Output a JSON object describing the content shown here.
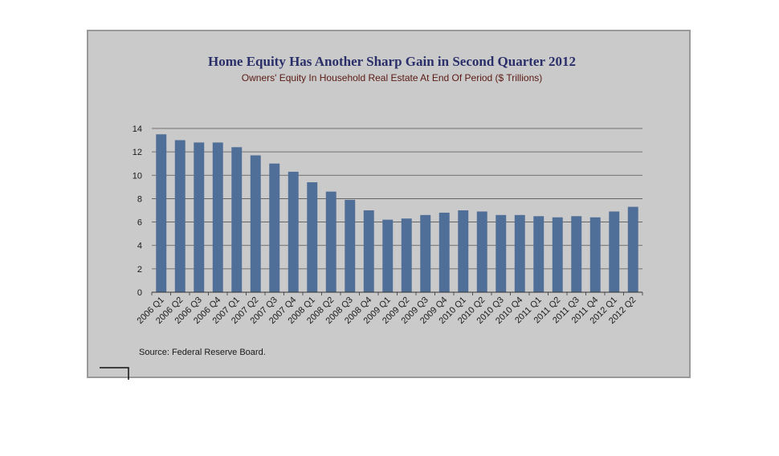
{
  "chart_data": {
    "type": "bar",
    "title": "Home Equity Has Another Sharp Gain in Second Quarter 2012",
    "subtitle": "Owners' Equity In Household Real Estate At End Of Period ($ Trillions)",
    "source": "Source:  Federal Reserve Board.",
    "categories": [
      "2006 Q1",
      "2006 Q2",
      "2006 Q3",
      "2006 Q4",
      "2007 Q1",
      "2007 Q2",
      "2007 Q3",
      "2007 Q4",
      "2008 Q1",
      "2008 Q2",
      "2008 Q3",
      "2008 Q4",
      "2009 Q1",
      "2009 Q2",
      "2009 Q3",
      "2009 Q4",
      "2010 Q1",
      "2010 Q2",
      "2010 Q3",
      "2010 Q4",
      "2011 Q1",
      "2011 Q2",
      "2011 Q3",
      "2011 Q4",
      "2012 Q1",
      "2012 Q2"
    ],
    "values": [
      13.5,
      13.0,
      12.8,
      12.8,
      12.4,
      11.7,
      11.0,
      10.3,
      9.4,
      8.6,
      7.9,
      7.0,
      6.2,
      6.3,
      6.6,
      6.8,
      7.0,
      6.9,
      6.6,
      6.6,
      6.5,
      6.4,
      6.5,
      6.4,
      6.9,
      7.3
    ],
    "ylim": [
      0,
      14
    ],
    "yticks": [
      "0",
      "2",
      "4",
      "6",
      "8",
      "10",
      "12",
      "14"
    ],
    "grid": true,
    "bar_color": "#4f6f98",
    "title_color": "#2a2f6a",
    "subtitle_color": "#5a1a14"
  }
}
